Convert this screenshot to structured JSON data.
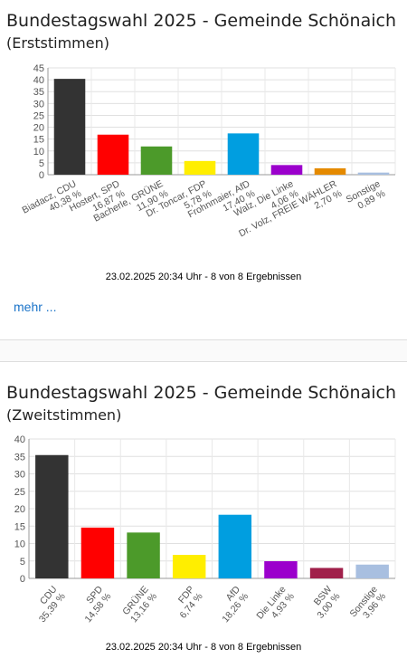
{
  "erst": {
    "title": "Bundestagswahl 2025 - Gemeinde Schönaich",
    "subtitle": "(Erststimmen)",
    "timestamp": "23.02.2025 20:34 Uhr - 8 von 8 Ergebnissen",
    "more_label": "mehr ..."
  },
  "zweit": {
    "title": "Bundestagswahl 2025 - Gemeinde Schönaich",
    "subtitle": "(Zweitstimmen)",
    "timestamp": "23.02.2025 20:34 Uhr - 8 von 8 Ergebnissen"
  },
  "chart_data": [
    {
      "type": "bar",
      "title": "Bundestagswahl 2025 - Gemeinde Schönaich (Erststimmen)",
      "categories": [
        "Biadacz, CDU",
        "Hostert, SPD",
        "Bacherle, GRÜNE",
        "Dr. Toncar, FDP",
        "Frohnmaier, AfD",
        "Walz, Die Linke",
        "Dr. Volz, FREIE WÄHLER",
        "Sonstige"
      ],
      "value_labels": [
        "40,38 %",
        "16,87 %",
        "11,90 %",
        "5,78 %",
        "17,40 %",
        "4,06 %",
        "2,70 %",
        "0,89 %"
      ],
      "values": [
        40.38,
        16.87,
        11.9,
        5.78,
        17.4,
        4.06,
        2.7,
        0.89
      ],
      "colors": [
        "#333333",
        "#ff0000",
        "#4c9a2a",
        "#ffee00",
        "#009ee0",
        "#9b00cc",
        "#e58a00",
        "#a8bfe0"
      ],
      "ylim": [
        0,
        45
      ],
      "yticks": [
        0,
        5,
        10,
        15,
        20,
        25,
        30,
        35,
        40,
        45
      ],
      "grid": true,
      "xlabel": "",
      "ylabel": ""
    },
    {
      "type": "bar",
      "title": "Bundestagswahl 2025 - Gemeinde Schönaich (Zweitstimmen)",
      "categories": [
        "CDU",
        "SPD",
        "GRÜNE",
        "FDP",
        "AfD",
        "Die Linke",
        "BSW",
        "Sonstige"
      ],
      "value_labels": [
        "35,39 %",
        "14,58 %",
        "13,16 %",
        "6,74 %",
        "18,26 %",
        "4,93 %",
        "3,00 %",
        "3,96 %"
      ],
      "values": [
        35.39,
        14.58,
        13.16,
        6.74,
        18.26,
        4.93,
        3.0,
        3.96
      ],
      "colors": [
        "#333333",
        "#ff0000",
        "#4c9a2a",
        "#ffee00",
        "#009ee0",
        "#9b00cc",
        "#a0204a",
        "#a8bfe0"
      ],
      "ylim": [
        0,
        40
      ],
      "yticks": [
        0,
        5,
        10,
        15,
        20,
        25,
        30,
        35,
        40
      ],
      "grid": true,
      "xlabel": "",
      "ylabel": ""
    }
  ]
}
